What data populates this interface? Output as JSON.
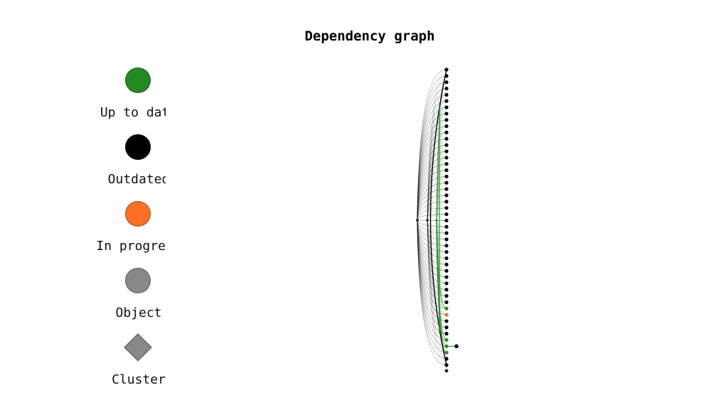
{
  "title": "Dependency graph",
  "legend": {
    "items": [
      {
        "label": "Up to date",
        "color": "#228b22",
        "shape": "circle"
      },
      {
        "label": "Outdated",
        "color": "#000000",
        "shape": "circle"
      },
      {
        "label": "In progress",
        "color": "#ff7026",
        "shape": "circle"
      },
      {
        "label": "Object",
        "color": "#888888",
        "shape": "circle"
      },
      {
        "label": "Cluster",
        "color": "#888888",
        "shape": "diamond"
      }
    ]
  },
  "graph": {
    "edge_color": "#000000",
    "edge_color_uptodate": "#228b22",
    "node_count": 48,
    "uptodate_indices": [
      38,
      43,
      44,
      45
    ],
    "inprogress_indices": [
      39
    ]
  }
}
